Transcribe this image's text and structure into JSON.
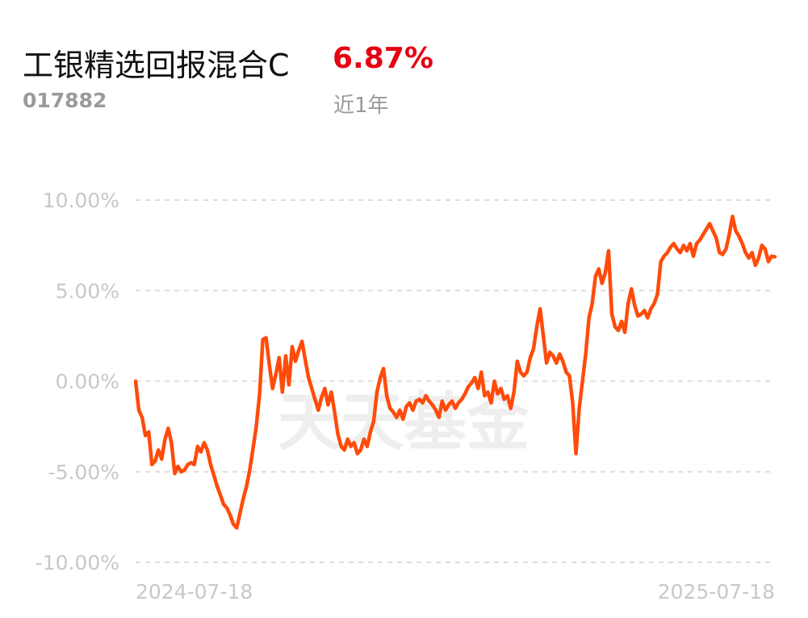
{
  "header": {
    "fund_name": "工银精选回报混合C",
    "fund_code": "017882",
    "return_value": "6.87%",
    "return_period": "近1年"
  },
  "watermark": "天天基金",
  "colors": {
    "line": "#ff4b0a",
    "positive": "#e60012",
    "grid": "#dcdcdc",
    "axis_text": "#c8c8c8"
  },
  "chart_data": {
    "type": "line",
    "title": "",
    "xlabel": "",
    "ylabel": "",
    "ylim": [
      -10,
      10
    ],
    "y_ticks": [
      "10.00%",
      "5.00%",
      "0.00%",
      "-5.00%",
      "-10.00%"
    ],
    "x_ticks": [
      "2024-07-18",
      "2025-07-18"
    ],
    "grid": true,
    "series": [
      {
        "values": [
          0.0,
          -1.6,
          -2.0,
          -3.0,
          -2.8,
          -4.6,
          -4.4,
          -3.8,
          -4.3,
          -3.2,
          -2.6,
          -3.4,
          -5.1,
          -4.7,
          -5.0,
          -4.9,
          -4.6,
          -4.5,
          -4.6,
          -3.6,
          -3.9,
          -3.4,
          -3.8,
          -4.6,
          -5.2,
          -5.8,
          -6.3,
          -6.8,
          -7.0,
          -7.4,
          -7.9,
          -8.1,
          -7.3,
          -6.5,
          -5.8,
          -4.9,
          -3.7,
          -2.5,
          -0.7,
          2.3,
          2.4,
          0.9,
          -0.4,
          0.4,
          1.3,
          -0.6,
          1.4,
          -0.2,
          1.9,
          1.1,
          1.7,
          2.2,
          1.2,
          0.2,
          -0.4,
          -1.0,
          -1.6,
          -0.9,
          -0.4,
          -1.3,
          -0.6,
          -1.7,
          -2.9,
          -3.6,
          -3.8,
          -3.2,
          -3.6,
          -3.4,
          -4.0,
          -3.8,
          -3.2,
          -3.6,
          -2.8,
          -2.2,
          -0.6,
          0.2,
          0.7,
          -0.8,
          -1.5,
          -1.7,
          -2.0,
          -1.6,
          -2.1,
          -1.4,
          -1.2,
          -1.6,
          -1.1,
          -1.0,
          -1.2,
          -0.8,
          -1.1,
          -1.3,
          -1.6,
          -2.0,
          -1.1,
          -1.6,
          -1.3,
          -1.1,
          -1.5,
          -1.2,
          -1.0,
          -0.7,
          -0.3,
          -0.1,
          0.2,
          -0.4,
          0.5,
          -0.8,
          -0.6,
          -1.2,
          0.0,
          -0.7,
          -0.4,
          -1.0,
          -0.8,
          -1.5,
          -0.6,
          1.1,
          0.5,
          0.3,
          0.5,
          1.3,
          1.8,
          3.0,
          4.0,
          2.5,
          1.0,
          1.6,
          1.4,
          1.0,
          1.5,
          1.1,
          0.5,
          0.3,
          -1.2,
          -4.0,
          -1.5,
          0.0,
          1.5,
          3.5,
          4.3,
          5.8,
          6.2,
          5.4,
          6.0,
          7.2,
          3.7,
          3.0,
          2.8,
          3.3,
          2.7,
          4.3,
          5.1,
          4.2,
          3.6,
          3.7,
          3.9,
          3.5,
          4.0,
          4.3,
          4.8,
          6.6,
          6.9,
          7.1,
          7.4,
          7.6,
          7.3,
          7.1,
          7.5,
          7.2,
          7.6,
          6.9,
          7.6,
          7.8,
          8.1,
          8.4,
          8.7,
          8.3,
          7.9,
          7.1,
          7.0,
          7.3,
          8.1,
          9.1,
          8.3,
          8.0,
          7.6,
          7.1,
          6.8,
          7.1,
          6.4,
          6.8,
          7.5,
          7.3,
          6.6,
          6.9,
          6.87
        ]
      }
    ]
  }
}
